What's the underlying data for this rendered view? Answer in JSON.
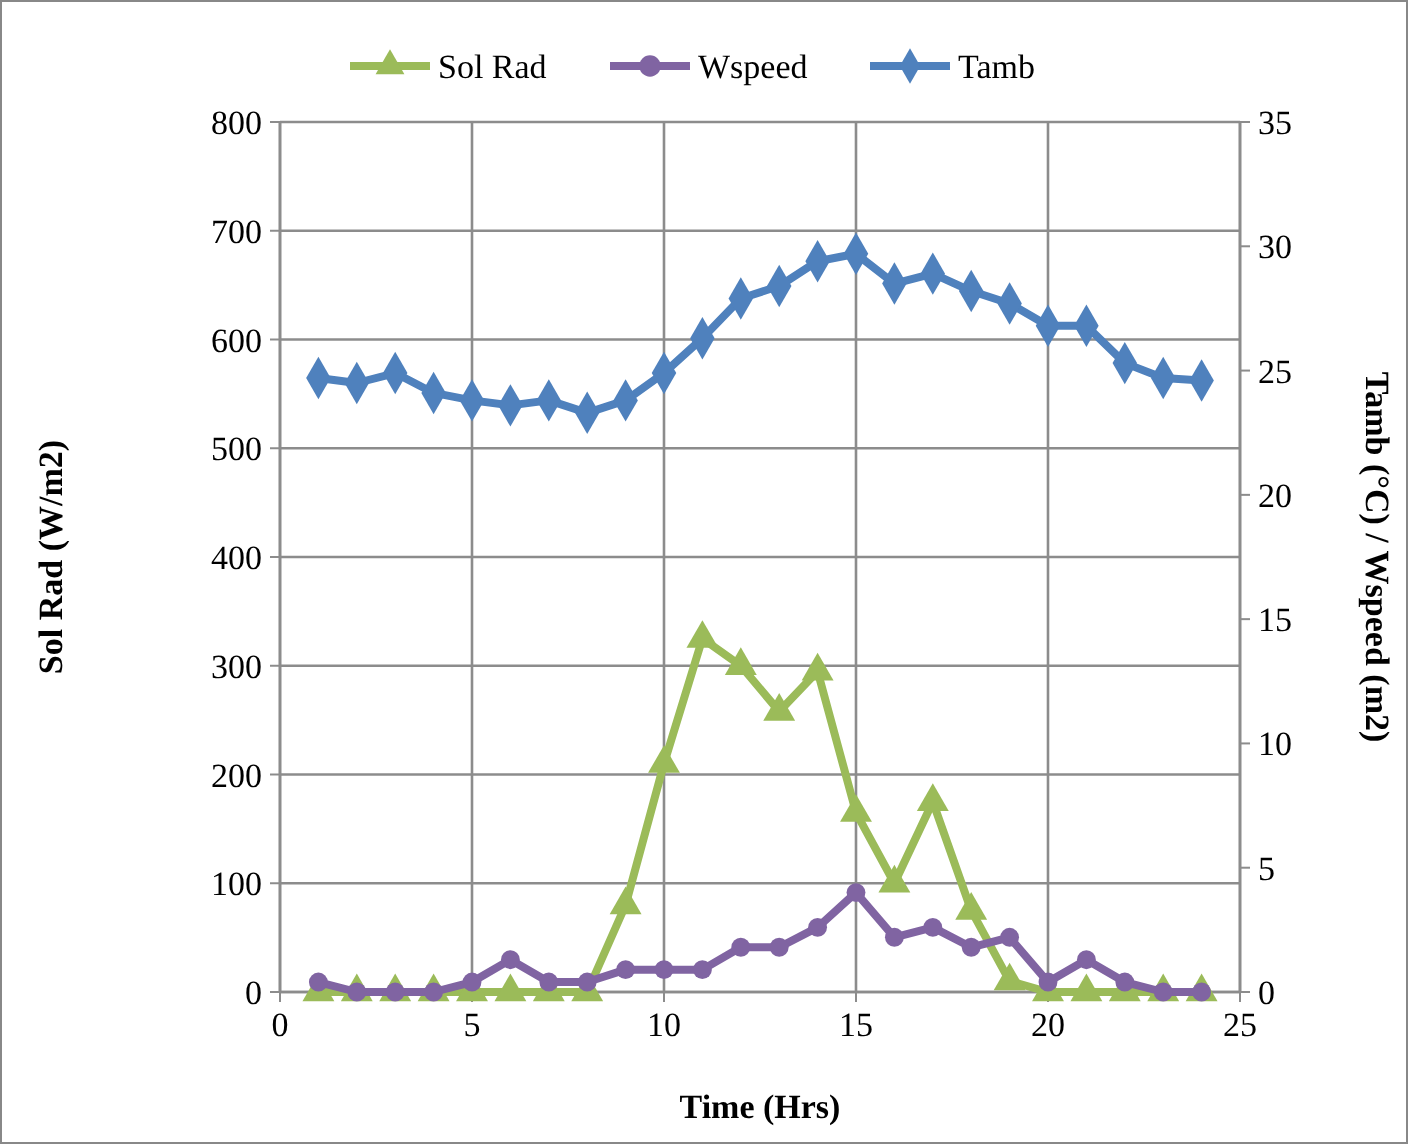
{
  "chart_data": {
    "type": "line",
    "xlabel": "Time (Hrs)",
    "ylabel": "Sol Rad (W/m2)",
    "y2label": "Tamb (°C) / Wspeed (m2)",
    "x": [
      1,
      2,
      3,
      4,
      5,
      6,
      7,
      8,
      9,
      10,
      11,
      12,
      13,
      14,
      15,
      16,
      17,
      18,
      19,
      20,
      21,
      22,
      23,
      24
    ],
    "series": [
      {
        "name": "Sol Rad",
        "color": "#9bbb59",
        "marker": "triangle",
        "values": [
          0,
          0,
          0,
          0,
          0,
          0,
          0,
          0,
          80,
          210,
          325,
          300,
          258,
          295,
          165,
          100,
          175,
          75,
          10,
          0,
          0,
          0,
          0,
          0
        ]
      },
      {
        "name": "Wspeed",
        "color": "#8064a2",
        "marker": "circle",
        "axis": "y2",
        "values": [
          0.4,
          0,
          0,
          0,
          0.4,
          1.3,
          0.4,
          0.4,
          0.9,
          0.9,
          0.9,
          1.8,
          1.8,
          2.6,
          4,
          2.2,
          2.6,
          1.8,
          2.2,
          0.4,
          1.3,
          0.4,
          0,
          0
        ]
      },
      {
        "name": "Tamb",
        "color": "#4f81bd",
        "marker": "diamond",
        "axis": "y2",
        "values": [
          24.7,
          24.5,
          24.9,
          24.1,
          23.8,
          23.6,
          23.8,
          23.3,
          23.8,
          24.9,
          26.3,
          27.9,
          28.4,
          29.4,
          29.7,
          28.5,
          28.9,
          28.2,
          27.7,
          26.8,
          26.8,
          25.3,
          24.7,
          24.6
        ]
      }
    ],
    "xlim": [
      0,
      25
    ],
    "xticks": [
      0,
      5,
      10,
      15,
      20,
      25
    ],
    "ylim": [
      0,
      800
    ],
    "yticks": [
      0,
      100,
      200,
      300,
      400,
      500,
      600,
      700,
      800
    ],
    "y2lim": [
      0,
      35
    ],
    "y2ticks": [
      0,
      5,
      10,
      15,
      20,
      25,
      30,
      35
    ],
    "grid": true,
    "legend": "top",
    "line_style": "solid"
  }
}
